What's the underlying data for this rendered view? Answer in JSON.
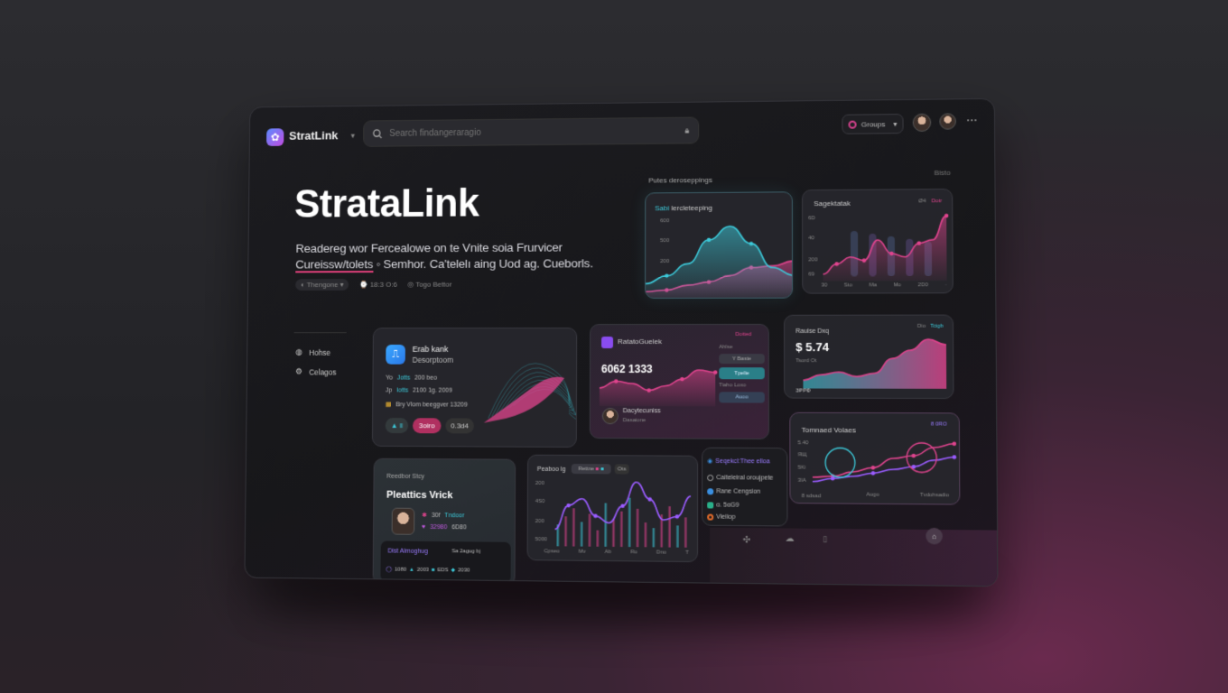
{
  "app": {
    "brand": "StratLink",
    "search_placeholder": "Search findangeraragio",
    "groups_label": "Groups",
    "more": "⋯"
  },
  "hero": {
    "title": "StrataLink",
    "line1": "Readereg wor Fercealowe on te Vnite soia Frurvicer",
    "line2_link": "Cureissw/tolets",
    "line2_rest": " ◦ Semhor. Ca'telelı aing Uod ag. Cueborls.",
    "meta": [
      "Thengone",
      "18:3 O:6",
      "Togo Bettor"
    ]
  },
  "sidebar": {
    "items": [
      {
        "label": "Hohse",
        "icon": "globe-icon"
      },
      {
        "label": "Celagos",
        "icon": "gear-icon"
      }
    ]
  },
  "section": {
    "label": "Putes deroseppings",
    "right": "Bisto"
  },
  "colors": {
    "teal": "#3cc8d8",
    "pink": "#e0448e",
    "violet": "#9a5cff"
  },
  "card_a": {
    "title_accent": "Sabi",
    "title": "lercleteeping",
    "yticks": [
      "600",
      "500",
      "200"
    ],
    "teal": [
      20,
      30,
      45,
      75,
      92,
      70,
      40,
      30
    ],
    "pink": [
      10,
      12,
      18,
      22,
      30,
      40,
      42,
      48
    ]
  },
  "card_b": {
    "title": "Sagektatak",
    "legend": [
      "Ø4",
      "Dotr"
    ],
    "yticks": [
      "6D",
      "40",
      "200",
      "69"
    ],
    "xticks": [
      "30",
      "Sto",
      "Ma",
      "Mo",
      "2D0",
      "·"
    ],
    "pink": [
      10,
      25,
      35,
      30,
      60,
      40,
      35,
      55,
      60,
      95
    ]
  },
  "card_c": {
    "title": "Erab kank",
    "subtitle": "Desorptoom",
    "rows": [
      {
        "prefix": "Yo",
        "accent": "Jotts",
        "text": "200 beo"
      },
      {
        "prefix": "Jp",
        "accent": "Iotts",
        "text": "2100 1g. 2009"
      },
      {
        "prefix": "",
        "accent": "",
        "text": "Bry Vlom beeggver 13209"
      }
    ],
    "buttons": [
      "▲ ll",
      "3oiro",
      "0.3d4"
    ]
  },
  "card_d": {
    "title": "RatatoGuelek",
    "tag": "Dotted",
    "value": "6062  1333",
    "person": "Dacytecuniss",
    "person_sub": "Dasaione",
    "side": [
      "Ahlse",
      "Y Baste",
      "Tpelie",
      "Tiaho Loxo",
      "Auoo"
    ],
    "pink": [
      40,
      55,
      50,
      35,
      45,
      60,
      80,
      75
    ]
  },
  "card_e": {
    "title": "Rauise Dxq",
    "value": "$ 5.74",
    "sub": "Tsord Ot",
    "foot": "ЗРРФ",
    "legend": [
      "Dio",
      "Tcigb"
    ],
    "area": [
      15,
      25,
      30,
      22,
      28,
      55,
      70,
      90,
      80
    ]
  },
  "card_f": {
    "title": "Tomnaed Volaes",
    "legend": "8 0RO",
    "yticks": [
      "5.40",
      "ЯЩ",
      "5Ki",
      "3IA"
    ],
    "xlabels": [
      "8 sdsad",
      "Augo",
      "Tvdohsadio"
    ],
    "line1": [
      20,
      22,
      30,
      38,
      55,
      60,
      75,
      82
    ],
    "line2": [
      12,
      18,
      22,
      28,
      35,
      40,
      52,
      58
    ]
  },
  "card_g": {
    "title": "Reedbor Stcy",
    "heading": "Pleattics Vrick",
    "stats": [
      "30f",
      "Tndoor",
      "32980",
      "6D80"
    ],
    "panel_title": "Dist Almoghug",
    "panel_right": "Sa 2agug bj",
    "panel_items": [
      "1080",
      "2003",
      "EDS",
      "2030"
    ]
  },
  "card_h": {
    "title": "Peaboo lg",
    "tabs": [
      "Rettne",
      "·",
      "Ots"
    ],
    "yticks": [
      "200",
      "4S0",
      "200",
      "5000"
    ],
    "xticks": [
      "Cpseo",
      "Mv",
      "Ab",
      "Ro",
      "Dno",
      "T"
    ],
    "line": [
      25,
      60,
      70,
      45,
      35,
      60,
      95,
      70,
      40,
      45,
      75
    ],
    "bars": [
      40,
      55,
      70,
      45,
      60,
      30,
      80,
      50,
      65,
      90,
      70,
      45,
      35,
      60,
      75,
      40,
      55
    ]
  },
  "card_i": {
    "title": "Seqekcl:Thee elloa",
    "items": [
      {
        "label": "Caiteleiral oroujpete",
        "color": "#aaa"
      },
      {
        "label": "Rane Cengsion",
        "color": "#3a8fe0"
      },
      {
        "label": "ɑ. 5ɑG9",
        "color": "#2ab08a"
      },
      {
        "label": "Vieiiop",
        "color": "#e06a2a"
      }
    ]
  }
}
